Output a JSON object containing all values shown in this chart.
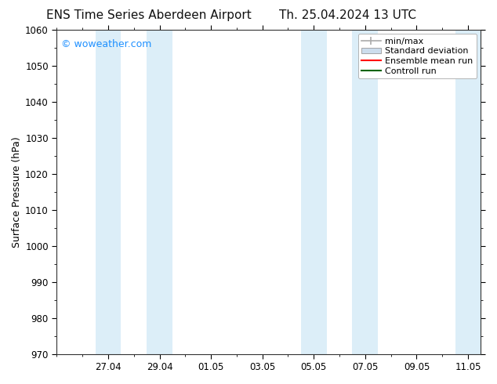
{
  "title_left": "ENS Time Series Aberdeen Airport",
  "title_right": "Th. 25.04.2024 13 UTC",
  "ylabel": "Surface Pressure (hPa)",
  "ylim": [
    970,
    1060
  ],
  "yticks": [
    970,
    980,
    990,
    1000,
    1010,
    1020,
    1030,
    1040,
    1050,
    1060
  ],
  "xlim_start": 0.0,
  "xlim_end": 16.5,
  "xtick_labels": [
    "27.04",
    "29.04",
    "01.05",
    "03.05",
    "05.05",
    "07.05",
    "09.05",
    "11.05"
  ],
  "xtick_positions": [
    2,
    4,
    6,
    8,
    10,
    12,
    14,
    16
  ],
  "background_color": "#ffffff",
  "plot_bg_color": "#ffffff",
  "watermark_text": "© woweather.com",
  "watermark_color": "#1e90ff",
  "legend_items": [
    {
      "label": "min/max",
      "color": "#aaaaaa",
      "type": "errbar"
    },
    {
      "label": "Standard deviation",
      "color": "#ccdded",
      "type": "bar"
    },
    {
      "label": "Ensemble mean run",
      "color": "#ff0000",
      "type": "line"
    },
    {
      "label": "Controll run",
      "color": "#006400",
      "type": "line"
    }
  ],
  "shaded_bands": [
    {
      "x_start": 1.5,
      "x_end": 2.5,
      "color": "#dceef8"
    },
    {
      "x_start": 3.5,
      "x_end": 4.5,
      "color": "#dceef8"
    },
    {
      "x_start": 9.5,
      "x_end": 10.5,
      "color": "#dceef8"
    },
    {
      "x_start": 11.5,
      "x_end": 12.5,
      "color": "#dceef8"
    },
    {
      "x_start": 15.5,
      "x_end": 16.5,
      "color": "#dceef8"
    }
  ],
  "title_fontsize": 11,
  "axis_label_fontsize": 9,
  "tick_fontsize": 8.5,
  "legend_fontsize": 8
}
